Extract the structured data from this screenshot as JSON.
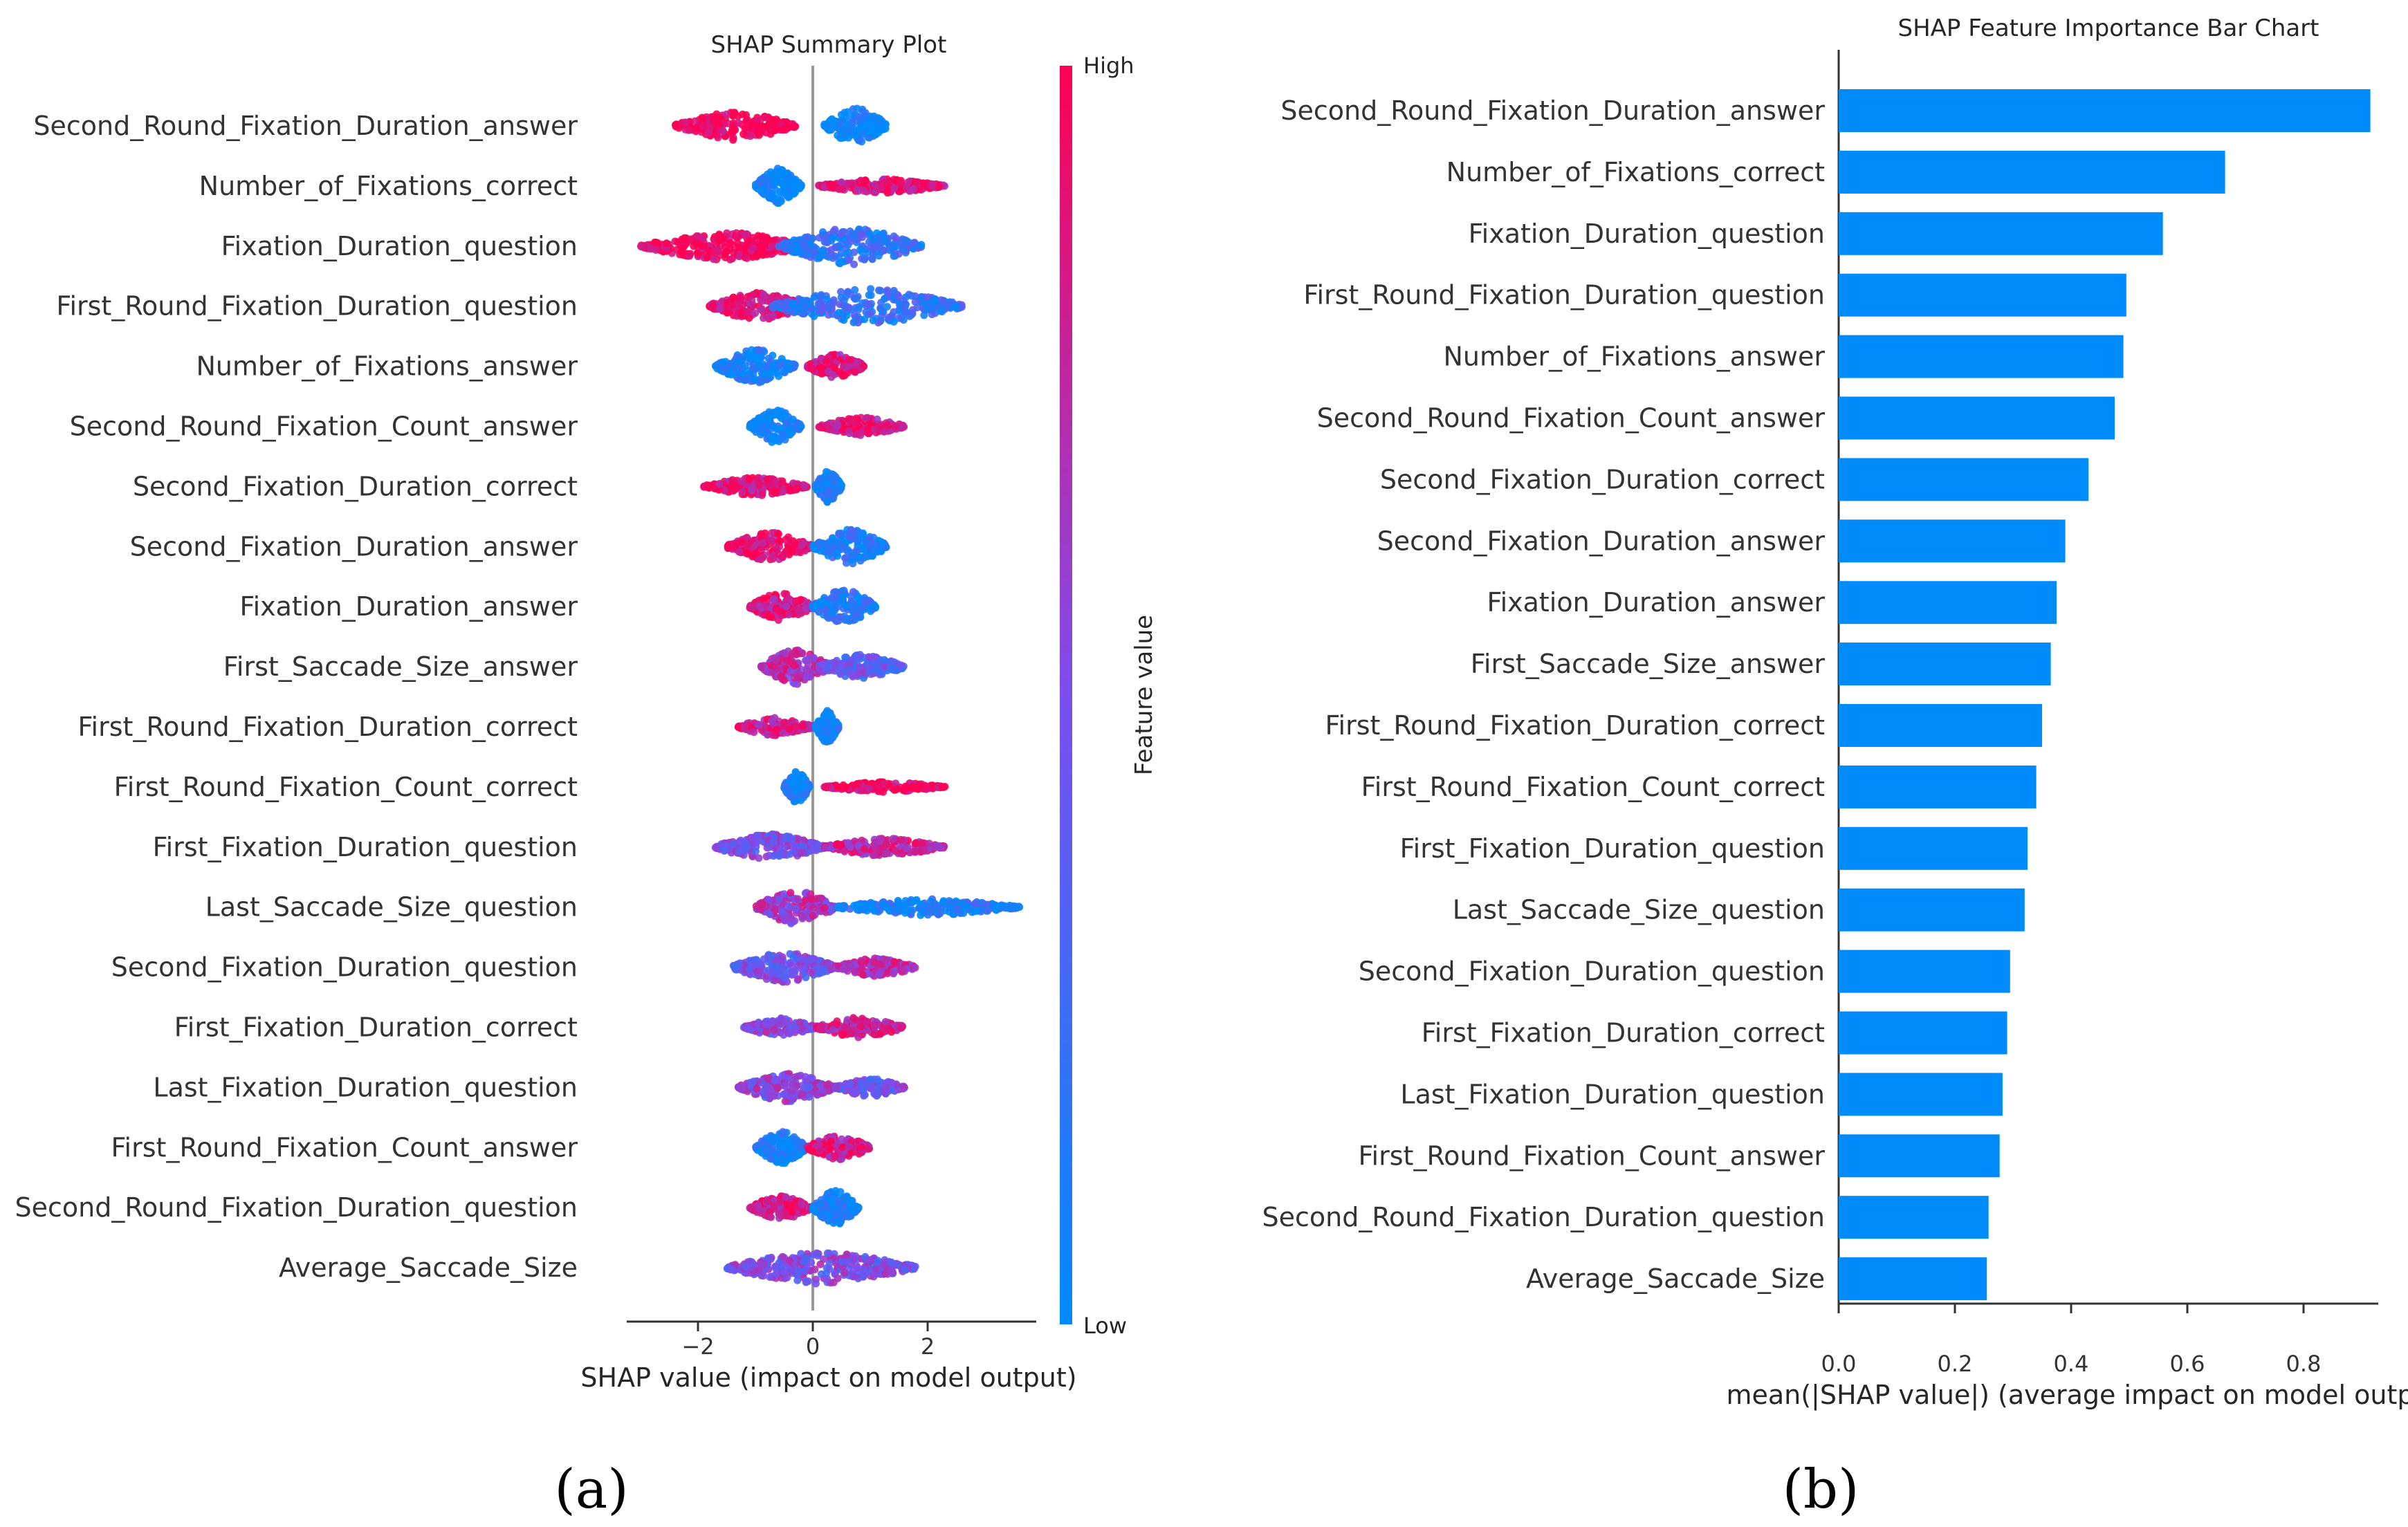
{
  "chart_data": [
    {
      "type": "scatter",
      "subtype": "beeswarm",
      "title": "SHAP Summary Plot",
      "xlabel": "SHAP value (impact on model output)",
      "ylabel": "",
      "xlim": [
        -3.3,
        3.9
      ],
      "xticks": [
        -2,
        0,
        2
      ],
      "xtick_labels": [
        "−2",
        "0",
        "2"
      ],
      "grid": false,
      "features": [
        "Second_Round_Fixation_Duration_answer",
        "Number_of_Fixations_correct",
        "Fixation_Duration_question",
        "First_Round_Fixation_Duration_question",
        "Number_of_Fixations_answer",
        "Second_Round_Fixation_Count_answer",
        "Second_Fixation_Duration_correct",
        "Second_Fixation_Duration_answer",
        "Fixation_Duration_answer",
        "First_Saccade_Size_answer",
        "First_Round_Fixation_Duration_correct",
        "First_Round_Fixation_Count_correct",
        "First_Fixation_Duration_question",
        "Last_Saccade_Size_question",
        "Second_Fixation_Duration_question",
        "First_Fixation_Duration_correct",
        "Last_Fixation_Duration_question",
        "First_Round_Fixation_Count_answer",
        "Second_Round_Fixation_Duration_question",
        "Average_Saccade_Size"
      ],
      "series": [
        {
          "clusters": [
            [
              -2.4,
              -0.3,
              1.0,
              0.7,
              0.95
            ],
            [
              0.2,
              1.3,
              0.0,
              0.9,
              0.85
            ]
          ]
        },
        {
          "clusters": [
            [
              -1.0,
              -0.2,
              0.0,
              0.85,
              0.85
            ],
            [
              0.1,
              2.3,
              0.9,
              0.35,
              0.6
            ]
          ]
        },
        {
          "clusters": [
            [
              -3.0,
              -0.1,
              1.0,
              0.7,
              0.85
            ],
            [
              -0.6,
              1.9,
              0.2,
              0.9,
              0.9
            ]
          ]
        },
        {
          "clusters": [
            [
              -1.8,
              -0.1,
              0.9,
              0.7,
              0.8
            ],
            [
              -0.7,
              2.6,
              0.2,
              0.9,
              0.9
            ]
          ]
        },
        {
          "clusters": [
            [
              -1.7,
              -0.3,
              0.05,
              0.85,
              0.85
            ],
            [
              -0.1,
              0.9,
              0.85,
              0.6,
              0.85
            ]
          ]
        },
        {
          "clusters": [
            [
              -1.1,
              -0.2,
              0.05,
              0.85,
              0.85
            ],
            [
              0.1,
              1.6,
              0.85,
              0.45,
              0.55
            ]
          ]
        },
        {
          "clusters": [
            [
              -1.9,
              -0.1,
              0.9,
              0.45,
              0.6
            ],
            [
              0.05,
              0.5,
              0.05,
              0.8,
              0.85
            ]
          ]
        },
        {
          "clusters": [
            [
              -1.5,
              0.0,
              0.9,
              0.7,
              0.85
            ],
            [
              0.0,
              1.3,
              0.1,
              0.85,
              0.85
            ]
          ]
        },
        {
          "clusters": [
            [
              -1.1,
              0.0,
              0.85,
              0.7,
              0.8
            ],
            [
              0.0,
              1.1,
              0.1,
              0.85,
              0.85
            ]
          ]
        },
        {
          "clusters": [
            [
              -0.9,
              0.3,
              0.7,
              0.85,
              0.9
            ],
            [
              0.1,
              1.6,
              0.4,
              0.6,
              0.75
            ]
          ]
        },
        {
          "clusters": [
            [
              -1.3,
              0.0,
              0.85,
              0.45,
              0.6
            ],
            [
              0.05,
              0.45,
              0.05,
              0.8,
              0.85
            ]
          ]
        },
        {
          "clusters": [
            [
              -0.5,
              -0.05,
              0.05,
              0.8,
              0.8
            ],
            [
              0.2,
              2.3,
              0.95,
              0.25,
              0.45
            ]
          ]
        },
        {
          "clusters": [
            [
              -1.7,
              0.2,
              0.5,
              0.65,
              0.9
            ],
            [
              0.2,
              2.3,
              0.75,
              0.45,
              0.65
            ]
          ]
        },
        {
          "clusters": [
            [
              -1.0,
              0.4,
              0.65,
              0.85,
              0.9
            ],
            [
              0.4,
              3.6,
              0.1,
              0.4,
              0.55
            ]
          ]
        },
        {
          "clusters": [
            [
              -1.4,
              0.4,
              0.45,
              0.75,
              0.9
            ],
            [
              0.4,
              1.8,
              0.7,
              0.45,
              0.6
            ]
          ]
        },
        {
          "clusters": [
            [
              -1.2,
              0.05,
              0.55,
              0.45,
              0.6
            ],
            [
              0.05,
              1.6,
              0.8,
              0.5,
              0.65
            ]
          ]
        },
        {
          "clusters": [
            [
              -1.3,
              0.4,
              0.55,
              0.7,
              0.9
            ],
            [
              0.4,
              1.6,
              0.45,
              0.45,
              0.6
            ]
          ]
        },
        {
          "clusters": [
            [
              -1.0,
              -0.1,
              0.05,
              0.8,
              0.85
            ],
            [
              -0.1,
              1.0,
              0.85,
              0.6,
              0.85
            ]
          ]
        },
        {
          "clusters": [
            [
              -1.1,
              0.0,
              0.85,
              0.6,
              0.8
            ],
            [
              0.0,
              0.8,
              0.1,
              0.85,
              0.9
            ]
          ]
        },
        {
          "clusters": [
            [
              -1.5,
              1.8,
              0.5,
              0.8,
              0.95
            ]
          ]
        }
      ],
      "colorbar": {
        "label": "Feature value",
        "high_label": "High",
        "low_label": "Low",
        "low_color": "#008bfb",
        "high_color": "#ff0052"
      }
    },
    {
      "type": "bar",
      "orientation": "horizontal",
      "title": "SHAP Feature Importance Bar Chart",
      "xlabel": "mean(|SHAP value|) (average impact on model output",
      "ylabel": "",
      "xlim": [
        0,
        0.95
      ],
      "xticks": [
        0.0,
        0.2,
        0.4,
        0.6,
        0.8
      ],
      "xtick_labels": [
        "0.0",
        "0.2",
        "0.4",
        "0.6",
        "0.8"
      ],
      "grid": false,
      "bar_color": "#008bfb",
      "categories": [
        "Second_Round_Fixation_Duration_answer",
        "Number_of_Fixations_correct",
        "Fixation_Duration_question",
        "First_Round_Fixation_Duration_question",
        "Number_of_Fixations_answer",
        "Second_Round_Fixation_Count_answer",
        "Second_Fixation_Duration_correct",
        "Second_Fixation_Duration_answer",
        "Fixation_Duration_answer",
        "First_Saccade_Size_answer",
        "First_Round_Fixation_Duration_correct",
        "First_Round_Fixation_Count_correct",
        "First_Fixation_Duration_question",
        "Last_Saccade_Size_question",
        "Second_Fixation_Duration_question",
        "First_Fixation_Duration_correct",
        "Last_Fixation_Duration_question",
        "First_Round_Fixation_Count_answer",
        "Second_Round_Fixation_Duration_question",
        "Average_Saccade_Size"
      ],
      "values": [
        0.915,
        0.665,
        0.558,
        0.495,
        0.49,
        0.475,
        0.43,
        0.39,
        0.375,
        0.365,
        0.35,
        0.34,
        0.325,
        0.32,
        0.295,
        0.29,
        0.282,
        0.277,
        0.258,
        0.255
      ]
    }
  ],
  "panel_labels": [
    "(a)",
    "(b)"
  ]
}
